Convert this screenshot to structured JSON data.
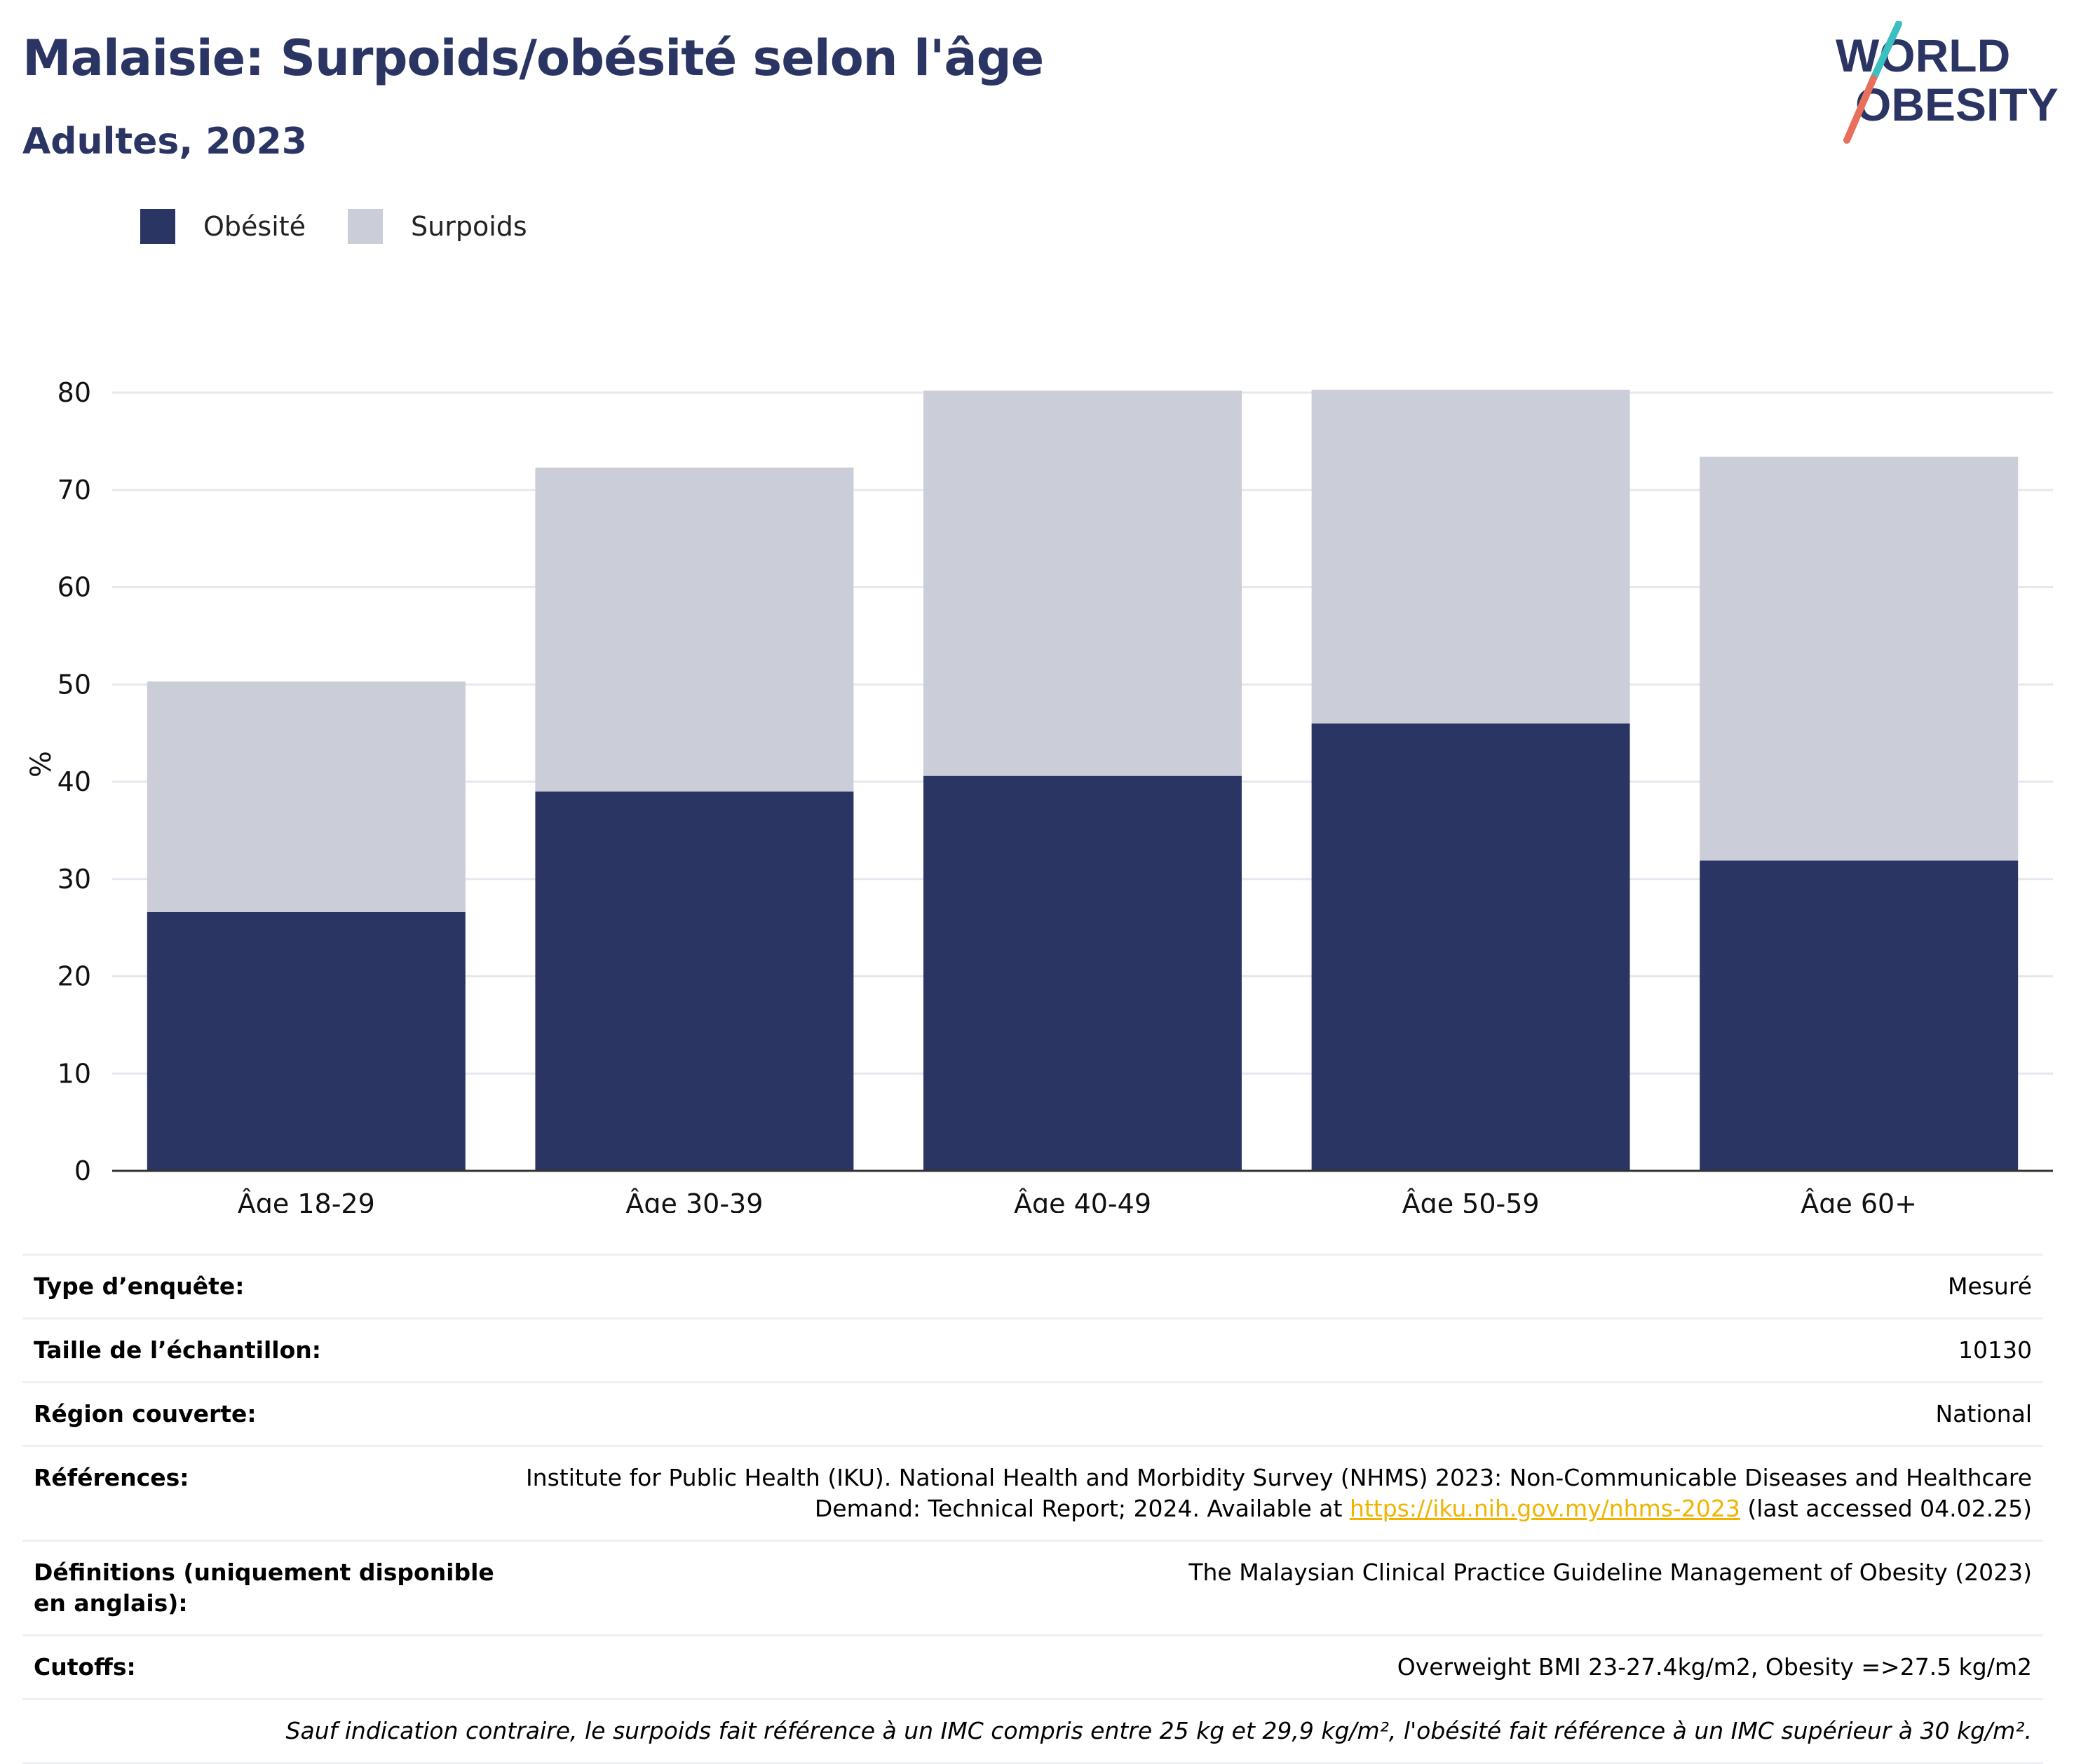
{
  "title": "Malaisie: Surpoids/obésité selon l'âge",
  "subtitle": "Adultes, 2023",
  "logo": {
    "line1": "WORLD",
    "line2": "OBESITY",
    "accent_teal": "#3bbfc0",
    "accent_coral": "#e8705b"
  },
  "colors": {
    "obesity": "#2b3564",
    "overweight": "#cbcdd8",
    "grid": "#e6e8ef",
    "axis": "#333333",
    "link": "#f0b400"
  },
  "legend": {
    "obesity": "Obésité",
    "overweight": "Surpoids"
  },
  "chart_data": {
    "type": "bar",
    "stacked": true,
    "categories": [
      "Âge 18-29",
      "Âge 30-39",
      "Âge 40-49",
      "Âge 50-59",
      "Âge 60+"
    ],
    "series": [
      {
        "name": "Obésité",
        "values": [
          26.6,
          39.0,
          40.6,
          46.0,
          31.9
        ]
      },
      {
        "name": "Surpoids",
        "values": [
          23.7,
          33.3,
          39.6,
          34.3,
          41.5
        ]
      }
    ],
    "ylabel": "%",
    "ylim": [
      0,
      80
    ],
    "yticks": [
      0,
      10,
      20,
      30,
      40,
      50,
      60,
      70,
      80
    ],
    "grid": true,
    "legend_position": "top-left"
  },
  "info": {
    "survey_type_label": "Type d’enquête:",
    "survey_type_value": "Mesuré",
    "sample_size_label": "Taille de l’échantillon:",
    "sample_size_value": "10130",
    "region_label": "Région couverte:",
    "region_value": "National",
    "references_label": "Références:",
    "references_text_1": "Institute for Public Health (IKU). National Health and Morbidity Survey (NHMS) 2023: Non-Communicable Diseases and Healthcare Demand: Technical Report; 2024. Available at ",
    "references_link": "https://iku.nih.gov.my/nhms-2023",
    "references_text_2": " (last accessed 04.02.25)",
    "definitions_label": "Définitions (uniquement disponible en anglais):",
    "definitions_value": "The Malaysian Clinical Practice Guideline Management of Obesity (2023)",
    "cutoffs_label": "Cutoffs:",
    "cutoffs_value": "Overweight BMI 23-27.4kg/m2, Obesity =>27.5 kg/m2",
    "note": "Sauf indication contraire, le surpoids fait référence à un IMC compris entre 25 kg et 29,9 kg/m², l'obésité fait référence à un IMC supérieur à 30 kg/m²."
  }
}
